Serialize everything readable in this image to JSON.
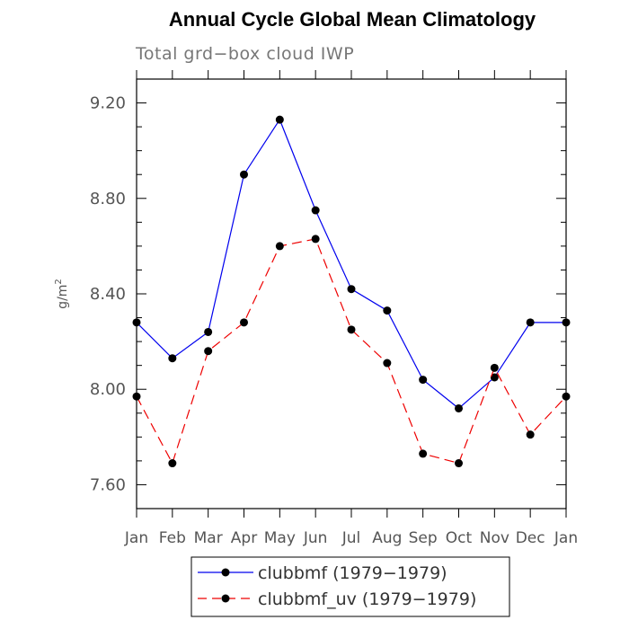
{
  "chart_data": {
    "type": "line",
    "title": "Annual Cycle Global Mean Climatology",
    "subtitle": "Total grd−box cloud IWP",
    "xlabel": "",
    "ylabel": "g/m",
    "ylabel_superscript": "2",
    "categories": [
      "Jan",
      "Feb",
      "Mar",
      "Apr",
      "May",
      "Jun",
      "Jul",
      "Aug",
      "Sep",
      "Oct",
      "Nov",
      "Dec",
      "Jan"
    ],
    "ylim": [
      7.5,
      9.3
    ],
    "yticks": [
      7.6,
      8.0,
      8.4,
      8.8,
      9.2
    ],
    "ytick_labels": [
      "7.60",
      "8.00",
      "8.40",
      "8.80",
      "9.20"
    ],
    "series": [
      {
        "name": "clubbmf (1979−1979)",
        "color": "#0000ee",
        "dashed": false,
        "values": [
          8.28,
          8.13,
          8.24,
          8.9,
          9.13,
          8.75,
          8.42,
          8.33,
          8.04,
          7.92,
          8.05,
          8.28,
          8.28
        ]
      },
      {
        "name": "clubbmf_uv (1979−1979)",
        "color": "#ee0000",
        "dashed": true,
        "values": [
          7.97,
          7.69,
          8.16,
          8.28,
          8.6,
          8.63,
          8.25,
          8.11,
          7.73,
          7.69,
          8.09,
          7.81,
          7.97
        ]
      }
    ],
    "legend_position": "bottom"
  }
}
